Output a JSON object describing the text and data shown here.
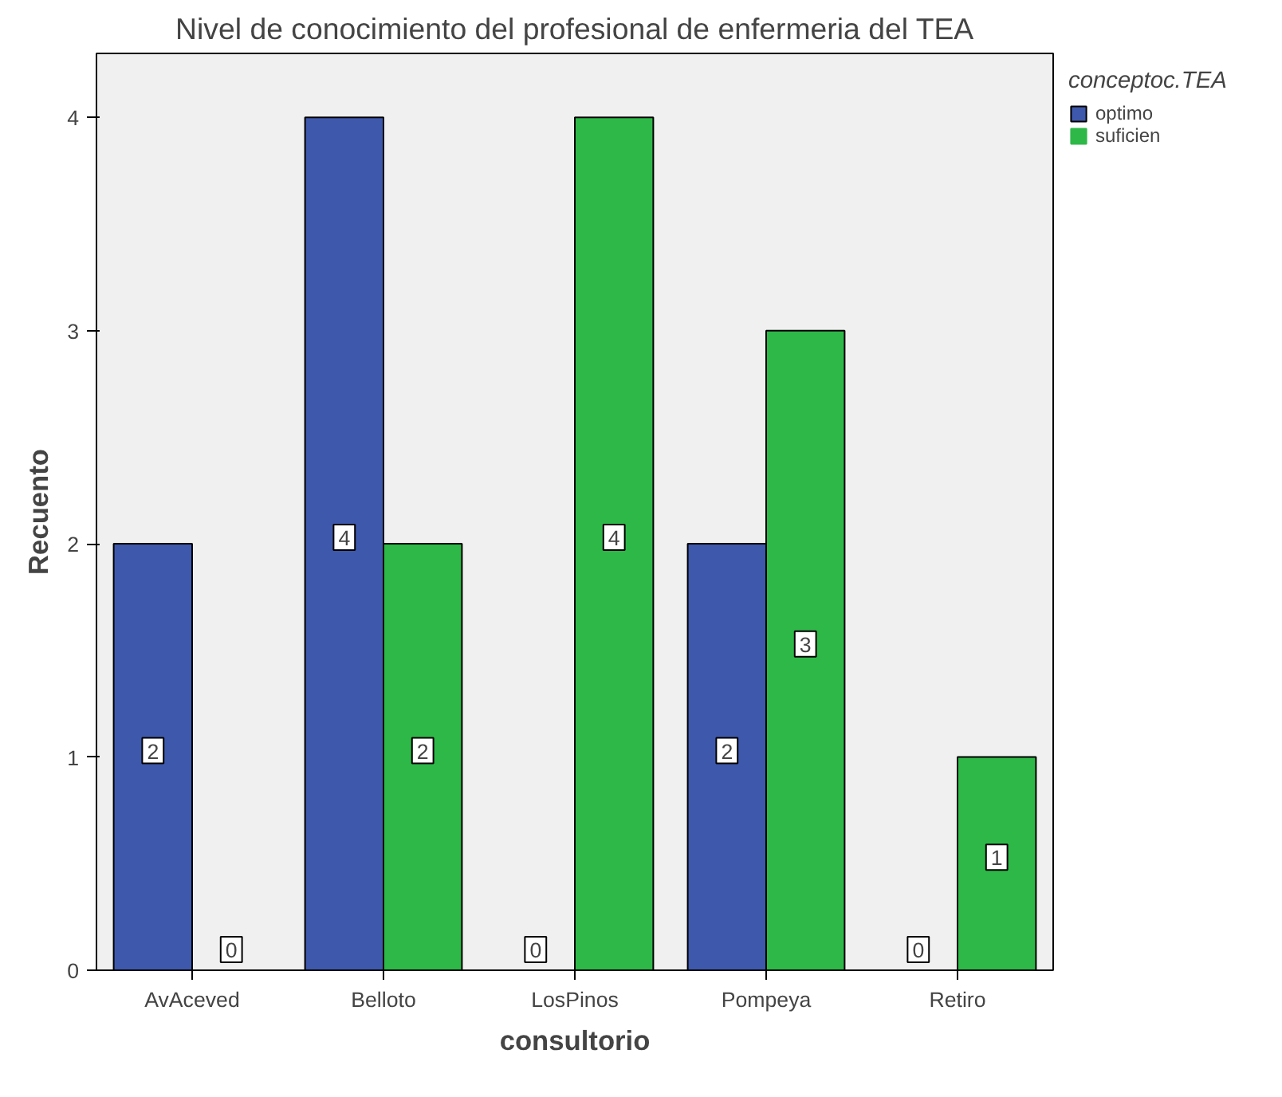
{
  "chart_data": {
    "type": "bar",
    "title": "Nivel de conocimiento del profesional de enfermeria del TEA",
    "xlabel": "consultorio",
    "ylabel": "Recuento",
    "legend_title": "conceptoc.TEA",
    "categories": [
      "AvAceved",
      "Belloto",
      "LosPinos",
      "Pompeya",
      "Retiro"
    ],
    "series": [
      {
        "name": "optimo",
        "color": "#3e58ac",
        "values": [
          2,
          4,
          0,
          2,
          0
        ]
      },
      {
        "name": "suficien",
        "color": "#2eb848",
        "values": [
          0,
          2,
          4,
          3,
          1
        ]
      }
    ],
    "ylim": [
      0,
      4.3
    ],
    "yticks": [
      0,
      1,
      2,
      3,
      4
    ],
    "grid": false,
    "legend": "top right",
    "data_labels": true
  }
}
